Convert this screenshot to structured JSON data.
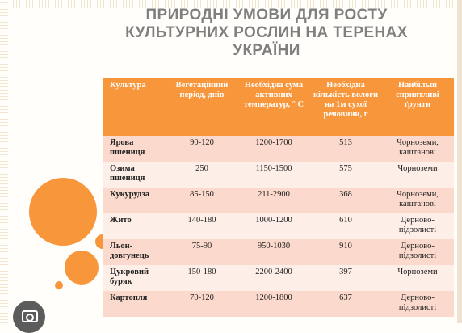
{
  "title": {
    "line1": "ПРИРОДНІ УМОВИ ДЛЯ РОСТУ",
    "line2": "КУЛЬТУРНИХ РОСЛИН НА ТЕРЕНАХ",
    "line3": "УКРАЇНИ"
  },
  "table": {
    "headers": {
      "crop": "Культура",
      "period": "Вегетаційний період, днів",
      "temp": "Необхідна сума активних температур, ° С",
      "moisture": "Необхідна кількість вологи на 1м сухої речовини, г",
      "soil": "Найбільш сприятливі ґрунти"
    },
    "rows": [
      {
        "crop": "Ярова пшениця",
        "period": "90-120",
        "temp": "1200-1700",
        "moisture": "513",
        "soil": "Чорноземи, каштанові"
      },
      {
        "crop": "Озима пшениця",
        "period": "250",
        "temp": "1150-1500",
        "moisture": "575",
        "soil": "Чорноземи"
      },
      {
        "crop": "Кукурудза",
        "period": "85-150",
        "temp": "211-2900",
        "moisture": "368",
        "soil": "Чорноземи, каштанові"
      },
      {
        "crop": "Жито",
        "period": "140-180",
        "temp": "1000-1200",
        "moisture": "610",
        "soil": "Дерново-підзолисті"
      },
      {
        "crop": "Льон-довгунець",
        "period": "75-90",
        "temp": "950-1030",
        "moisture": "910",
        "soil": "Дерново-підзолисті"
      },
      {
        "crop": "Цукровий буряк",
        "period": "150-180",
        "temp": "2200-2400",
        "moisture": "397",
        "soil": "Чорноземи"
      },
      {
        "crop": "Картопля",
        "period": "70-120",
        "temp": "1200-1800",
        "moisture": "637",
        "soil": "Дерново-підзолисті"
      }
    ]
  },
  "colors": {
    "accent": "#f8963c",
    "row_odd": "#fbd9cc",
    "row_even": "#fdeee8",
    "title": "#7f7f7f"
  },
  "icons": {
    "overlay": "camera-icon"
  }
}
